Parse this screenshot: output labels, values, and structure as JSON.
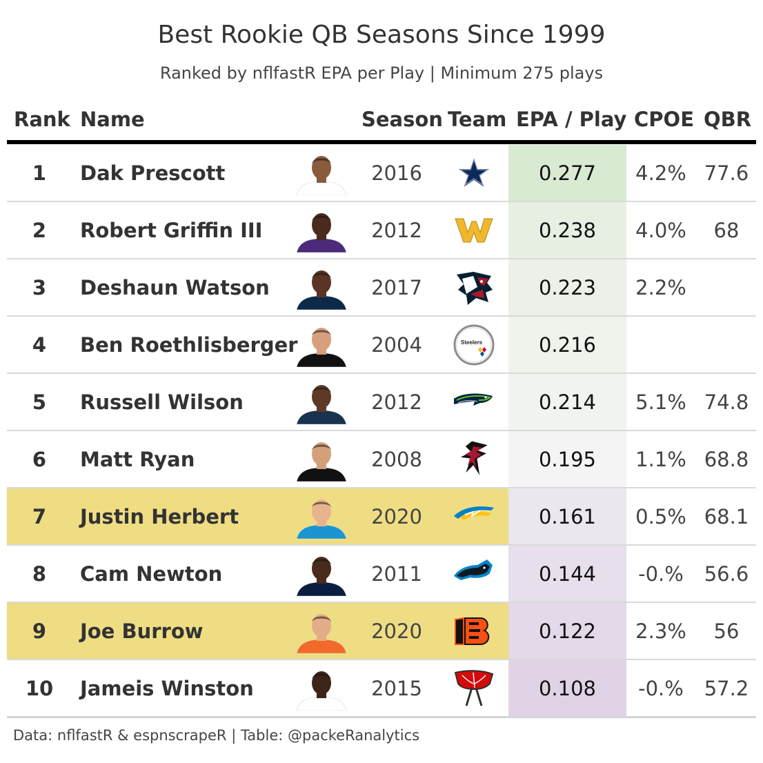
{
  "title": "Best Rookie QB Seasons Since 1999",
  "subtitle": "Ranked by nflfastR EPA per Play | Minimum 275 plays",
  "columns": {
    "rank": "Rank",
    "name": "Name",
    "season": "Season",
    "team": "Team",
    "epa": "EPA / Play",
    "cpoe": "CPOE",
    "qbr": "QBR"
  },
  "footer": "Data: nflfastR & espnscrapeR | Table: @packeRanalytics",
  "colors": {
    "highlight_row": "#efdd84",
    "header_rule": "#000000",
    "epa_scale_high": "#d8ead2",
    "epa_scale_low": "#e0d3e6"
  },
  "chart_data": {
    "type": "table",
    "title": "Best Rookie QB Seasons Since 1999",
    "subtitle": "Ranked by nflfastR EPA per Play | Minimum 275 plays",
    "columns": [
      "Rank",
      "Name",
      "Season",
      "Team",
      "EPA / Play",
      "CPOE",
      "QBR"
    ],
    "rows": [
      {
        "rank": "1",
        "name": "Dak Prescott",
        "season": "2016",
        "team": "cowboys",
        "epa": "0.277",
        "cpoe": "4.2%",
        "qbr": "77.6",
        "highlight": false,
        "epa_color": "#d8ead2"
      },
      {
        "rank": "2",
        "name": "Robert Griffin III",
        "season": "2012",
        "team": "commanders",
        "epa": "0.238",
        "cpoe": "4.0%",
        "qbr": "68",
        "highlight": false,
        "epa_color": "#e6efe2"
      },
      {
        "rank": "3",
        "name": "Deshaun Watson",
        "season": "2017",
        "team": "texans",
        "epa": "0.223",
        "cpoe": "2.2%",
        "qbr": "",
        "highlight": false,
        "epa_color": "#ebf1e8"
      },
      {
        "rank": "4",
        "name": "Ben Roethlisberger",
        "season": "2004",
        "team": "steelers",
        "epa": "0.216",
        "cpoe": "",
        "qbr": "",
        "highlight": false,
        "epa_color": "#eef3ec"
      },
      {
        "rank": "5",
        "name": "Russell Wilson",
        "season": "2012",
        "team": "seahawks",
        "epa": "0.214",
        "cpoe": "5.1%",
        "qbr": "74.8",
        "highlight": false,
        "epa_color": "#f0f4ee"
      },
      {
        "rank": "6",
        "name": "Matt Ryan",
        "season": "2008",
        "team": "falcons",
        "epa": "0.195",
        "cpoe": "1.1%",
        "qbr": "68.8",
        "highlight": false,
        "epa_color": "#f4f4f4"
      },
      {
        "rank": "7",
        "name": "Justin Herbert",
        "season": "2020",
        "team": "chargers",
        "epa": "0.161",
        "cpoe": "0.5%",
        "qbr": "68.1",
        "highlight": true,
        "epa_color": "#ece6ef"
      },
      {
        "rank": "8",
        "name": "Cam Newton",
        "season": "2011",
        "team": "panthers",
        "epa": "0.144",
        "cpoe": "-0.%",
        "qbr": "56.6",
        "highlight": false,
        "epa_color": "#e7dfeb"
      },
      {
        "rank": "9",
        "name": "Joe Burrow",
        "season": "2020",
        "team": "bengals",
        "epa": "0.122",
        "cpoe": "2.3%",
        "qbr": "56",
        "highlight": true,
        "epa_color": "#e3d9e8"
      },
      {
        "rank": "10",
        "name": "Jameis Winston",
        "season": "2015",
        "team": "buccaneers",
        "epa": "0.108",
        "cpoe": "-0.%",
        "qbr": "57.2",
        "highlight": false,
        "epa_color": "#e0d3e6"
      }
    ]
  }
}
